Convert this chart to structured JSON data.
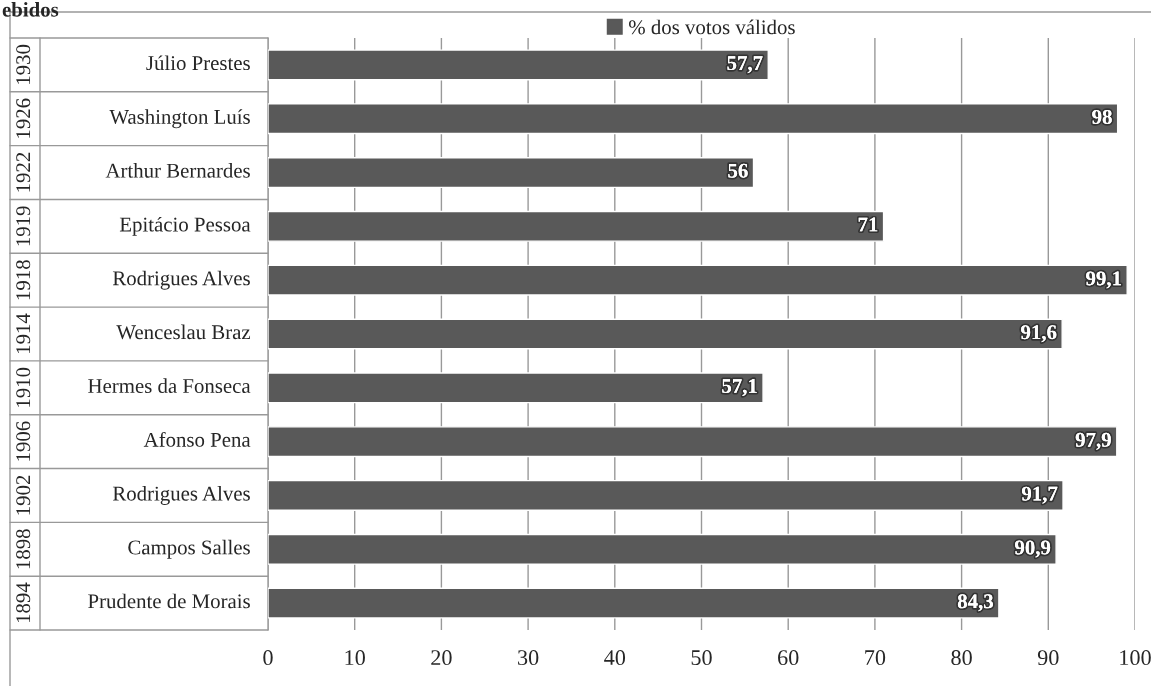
{
  "chart_data": {
    "type": "bar",
    "orientation": "horizontal",
    "title": "ebidos",
    "categories": [
      "Júlio Prestes",
      "Washington Luís",
      "Arthur Bernardes",
      "Epitácio Pessoa",
      "Rodrigues Alves",
      "Wenceslau Braz",
      "Hermes da Fonseca",
      "Afonso Pena",
      "Rodrigues Alves",
      "Campos Salles",
      "Prudente de Morais"
    ],
    "annotations": [
      "1930",
      "1926",
      "1922",
      "1919",
      "1918",
      "1914",
      "1910",
      "1906",
      "1902",
      "1898",
      "1894"
    ],
    "series": [
      {
        "name": "% dos votos válidos",
        "color": "#595959",
        "values": [
          57.7,
          98,
          56,
          71,
          99.1,
          91.6,
          57.1,
          97.9,
          91.7,
          90.9,
          84.3
        ],
        "value_labels": [
          "57,7",
          "98",
          "56",
          "71",
          "99,1",
          "91,6",
          "57,1",
          "97,9",
          "91,7",
          "90,9",
          "84,3"
        ]
      }
    ],
    "xlim": [
      0,
      100
    ],
    "xticks": [
      0,
      10,
      20,
      30,
      40,
      50,
      60,
      70,
      80,
      90,
      100
    ],
    "grid": "x",
    "legend": "top"
  }
}
